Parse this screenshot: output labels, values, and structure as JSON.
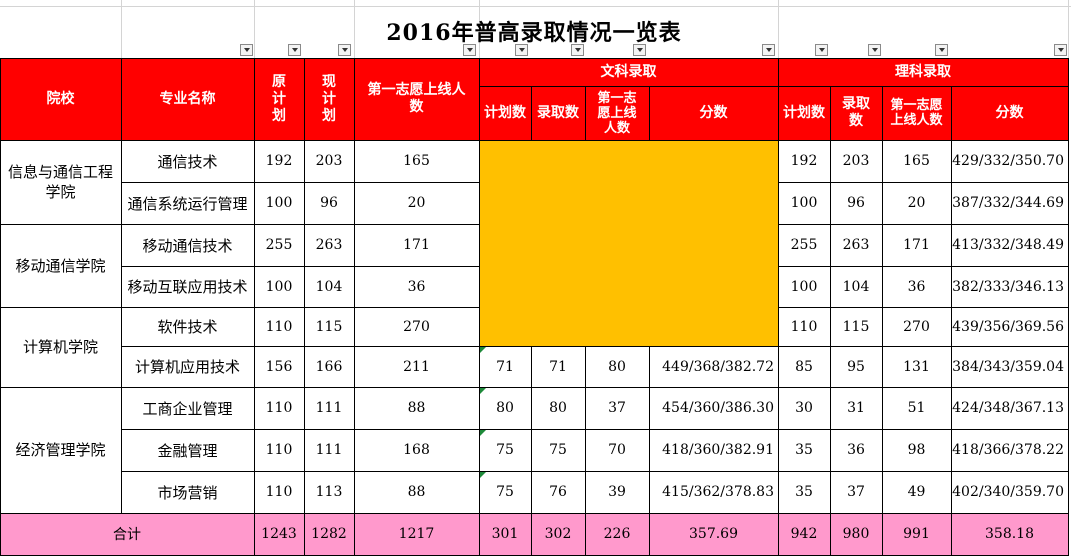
{
  "title": "2016年普高录取情况一览表",
  "headers": {
    "school": "院校",
    "major": "专业名称",
    "orig_plan": "原计划",
    "cur_plan": "现计划",
    "first_choice": "第一志愿上线人数",
    "arts_group": "文科录取",
    "sci_group": "理科录取",
    "arts_plan": "计划数",
    "arts_admit": "录取数",
    "arts_first": "第一志愿上线人数",
    "arts_score": "分数",
    "sci_plan": "计划数",
    "sci_admit": "录取数",
    "sci_first": "第一志愿上线人数",
    "sci_score": "分数"
  },
  "colors": {
    "header_bg": "#ff0000",
    "header_text": "#ffffff",
    "yellow_block": "#ffc000",
    "total_bg": "#ff99cc"
  },
  "schools": [
    {
      "name": "信息与通信工程学院"
    },
    {
      "name": "移动通信学院"
    },
    {
      "name": "计算机学院"
    },
    {
      "name": "经济管理学院"
    }
  ],
  "rows": [
    {
      "major": "通信技术",
      "orig": "192",
      "cur": "203",
      "first": "165",
      "a_plan": "",
      "a_admit": "",
      "a_first": "",
      "a_score": "",
      "s_plan": "192",
      "s_admit": "203",
      "s_first": "165",
      "s_score": "429/332/350.70"
    },
    {
      "major": "通信系统运行管理",
      "orig": "100",
      "cur": "96",
      "first": "20",
      "a_plan": "",
      "a_admit": "",
      "a_first": "",
      "a_score": "",
      "s_plan": "100",
      "s_admit": "96",
      "s_first": "20",
      "s_score": "387/332/344.69"
    },
    {
      "major": "移动通信技术",
      "orig": "255",
      "cur": "263",
      "first": "171",
      "a_plan": "",
      "a_admit": "",
      "a_first": "",
      "a_score": "",
      "s_plan": "255",
      "s_admit": "263",
      "s_first": "171",
      "s_score": "413/332/348.49"
    },
    {
      "major": "移动互联应用技术",
      "orig": "100",
      "cur": "104",
      "first": "36",
      "a_plan": "",
      "a_admit": "",
      "a_first": "",
      "a_score": "",
      "s_plan": "100",
      "s_admit": "104",
      "s_first": "36",
      "s_score": "382/333/346.13"
    },
    {
      "major": "软件技术",
      "orig": "110",
      "cur": "115",
      "first": "270",
      "a_plan": "",
      "a_admit": "",
      "a_first": "",
      "a_score": "",
      "s_plan": "110",
      "s_admit": "115",
      "s_first": "270",
      "s_score": "439/356/369.56"
    },
    {
      "major": "计算机应用技术",
      "orig": "156",
      "cur": "166",
      "first": "211",
      "a_plan": "71",
      "a_admit": "71",
      "a_first": "80",
      "a_score": "449/368/382.72",
      "s_plan": "85",
      "s_admit": "95",
      "s_first": "131",
      "s_score": "384/343/359.04"
    },
    {
      "major": "工商企业管理",
      "orig": "110",
      "cur": "111",
      "first": "88",
      "a_plan": "80",
      "a_admit": "80",
      "a_first": "37",
      "a_score": "454/360/386.30",
      "s_plan": "30",
      "s_admit": "31",
      "s_first": "51",
      "s_score": "424/348/367.13"
    },
    {
      "major": "金融管理",
      "orig": "110",
      "cur": "111",
      "first": "168",
      "a_plan": "75",
      "a_admit": "75",
      "a_first": "70",
      "a_score": "418/360/382.91",
      "s_plan": "35",
      "s_admit": "36",
      "s_first": "98",
      "s_score": "418/366/378.22"
    },
    {
      "major": "市场营销",
      "orig": "110",
      "cur": "113",
      "first": "88",
      "a_plan": "75",
      "a_admit": "76",
      "a_first": "39",
      "a_score": "415/362/378.83",
      "s_plan": "35",
      "s_admit": "37",
      "s_first": "49",
      "s_score": "402/340/359.70"
    }
  ],
  "total": {
    "label": "合计",
    "orig": "1243",
    "cur": "1282",
    "first": "1217",
    "a_plan": "301",
    "a_admit": "302",
    "a_first": "226",
    "a_score": "357.69",
    "s_plan": "942",
    "s_admit": "980",
    "s_first": "991",
    "s_score": "358.18"
  }
}
